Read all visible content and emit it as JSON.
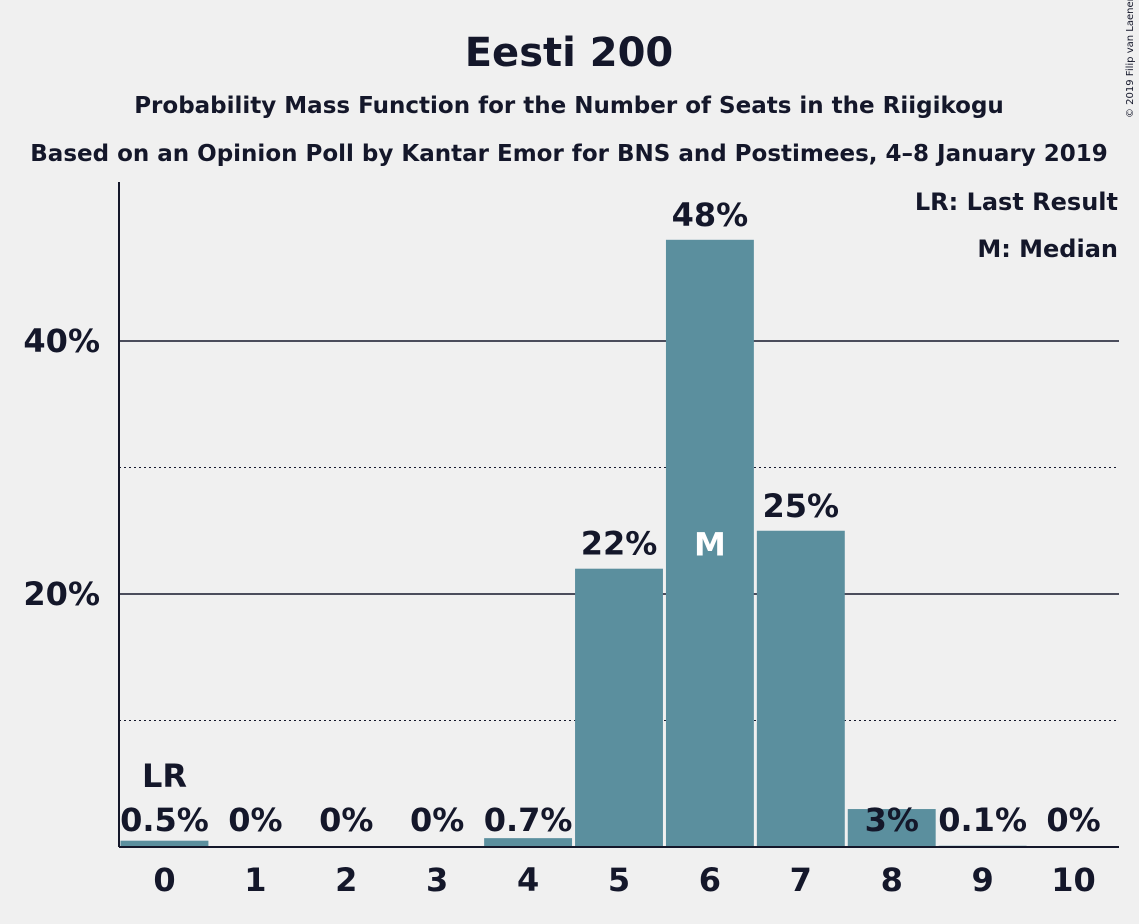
{
  "chart_data": {
    "type": "bar",
    "title": "Eesti 200",
    "subtitle": "Probability Mass Function for the Number of Seats in the Riigikogu",
    "subtitle2": "Based on an Opinion Poll by Kantar Emor for BNS and Postimees, 4–8 January 2019",
    "xlabel": "",
    "ylabel": "",
    "categories": [
      "0",
      "1",
      "2",
      "3",
      "4",
      "5",
      "6",
      "7",
      "8",
      "9",
      "10"
    ],
    "values": [
      0.5,
      0,
      0,
      0,
      0.7,
      22,
      48,
      25,
      3,
      0.1,
      0
    ],
    "value_labels": [
      "0.5%",
      "0%",
      "0%",
      "0%",
      "0.7%",
      "22%",
      "48%",
      "25%",
      "3%",
      "0.1%",
      "0%"
    ],
    "ylim": [
      0,
      50
    ],
    "y_ticks": [
      {
        "value": 20,
        "label": "20%"
      },
      {
        "value": 40,
        "label": "40%"
      }
    ],
    "minor_gridlines": [
      10,
      30
    ],
    "last_result_index": 0,
    "last_result_marker": "LR",
    "median_index": 6,
    "median_marker": "M",
    "legend": {
      "position": "top-right",
      "entries": [
        "LR: Last Result",
        "M: Median"
      ]
    },
    "bar_color": "#5b8f9e",
    "copyright": "© 2019 Filip van Laenen"
  }
}
